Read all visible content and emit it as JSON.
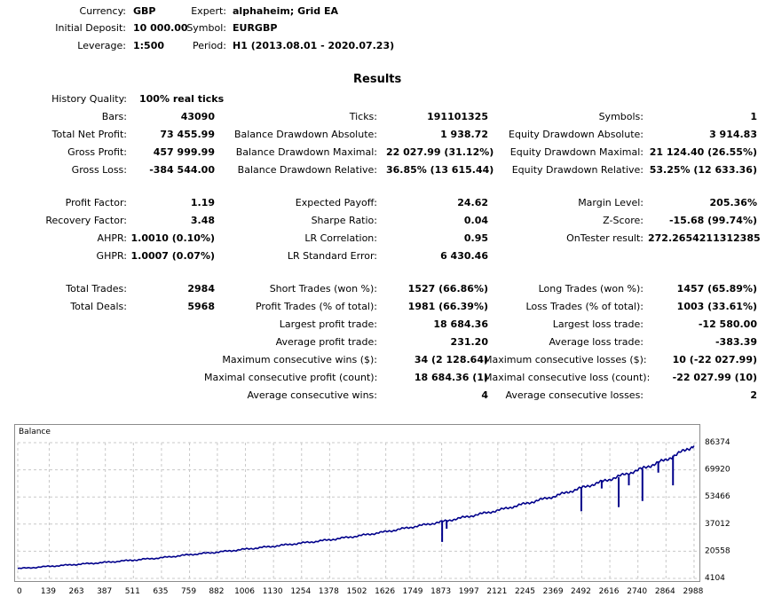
{
  "header": {
    "currency_label": "Currency:",
    "currency": "GBP",
    "deposit_label": "Initial Deposit:",
    "deposit": "10 000.00",
    "leverage_label": "Leverage:",
    "leverage": "1:500",
    "expert_label": "Expert:",
    "expert": "alphaheim; Grid EA",
    "symbol_label": "Symbol:",
    "symbol": "EURGBP",
    "period_label": "Period:",
    "period": "H1 (2013.08.01 - 2020.07.23)"
  },
  "results": {
    "title": "Results",
    "history_quality_label": "History Quality:",
    "history_quality": "100% real ticks",
    "col1": [
      {
        "label": "Bars:",
        "value": "43090"
      },
      {
        "label": "Total Net Profit:",
        "value": "73 455.99"
      },
      {
        "label": "Gross Profit:",
        "value": "457 999.99"
      },
      {
        "label": "Gross Loss:",
        "value": "-384 544.00"
      },
      {
        "label": "Profit Factor:",
        "value": "1.19"
      },
      {
        "label": "Recovery Factor:",
        "value": "3.48"
      },
      {
        "label": "AHPR:",
        "value": "1.0010 (0.10%)"
      },
      {
        "label": "GHPR:",
        "value": "1.0007 (0.07%)"
      },
      {
        "label": "Total Trades:",
        "value": "2984"
      },
      {
        "label": "Total Deals:",
        "value": "5968"
      }
    ],
    "col2": [
      {
        "label": "Ticks:",
        "value": "191101325"
      },
      {
        "label": "Balance Drawdown Absolute:",
        "value": "1 938.72"
      },
      {
        "label": "Balance Drawdown Maximal:",
        "value": "22 027.99 (31.12%)"
      },
      {
        "label": "Balance Drawdown Relative:",
        "value": "36.85% (13 615.44)"
      },
      {
        "label": "Expected Payoff:",
        "value": "24.62"
      },
      {
        "label": "Sharpe Ratio:",
        "value": "0.04"
      },
      {
        "label": "LR Correlation:",
        "value": "0.95"
      },
      {
        "label": "LR Standard Error:",
        "value": "6 430.46"
      },
      {
        "label": "Short Trades (won %):",
        "value": "1527 (66.86%)"
      },
      {
        "label": "Profit Trades (% of total):",
        "value": "1981 (66.39%)"
      },
      {
        "label": "Largest profit trade:",
        "value": "18 684.36"
      },
      {
        "label": "Average profit trade:",
        "value": "231.20"
      },
      {
        "label": "Maximum consecutive wins ($):",
        "value": "34 (2 128.64)"
      },
      {
        "label": "Maximal consecutive profit (count):",
        "value": "18 684.36 (1)"
      },
      {
        "label": "Average consecutive wins:",
        "value": "4"
      }
    ],
    "col3": [
      {
        "label": "Symbols:",
        "value": "1"
      },
      {
        "label": "Equity Drawdown Absolute:",
        "value": "3 914.83"
      },
      {
        "label": "Equity Drawdown Maximal:",
        "value": "21 124.40 (26.55%)"
      },
      {
        "label": "Equity Drawdown Relative:",
        "value": "53.25% (12 633.36)"
      },
      {
        "label": "Margin Level:",
        "value": "205.36%"
      },
      {
        "label": "Z-Score:",
        "value": "-15.68 (99.74%)"
      },
      {
        "label": "OnTester result:",
        "value": "272.2654211312385"
      },
      {
        "label": "Long Trades (won %):",
        "value": "1457 (65.89%)"
      },
      {
        "label": "Loss Trades (% of total):",
        "value": "1003 (33.61%)"
      },
      {
        "label": "Largest loss trade:",
        "value": "-12 580.00"
      },
      {
        "label": "Average loss trade:",
        "value": "-383.39"
      },
      {
        "label": "Maximum consecutive losses ($):",
        "value": "10 (-22 027.99)"
      },
      {
        "label": "Maximal consecutive loss (count):",
        "value": "-22 027.99 (10)"
      },
      {
        "label": "Average consecutive losses:",
        "value": "2"
      }
    ]
  },
  "colors": {
    "line": "#00008b",
    "grid": "#c8c8c8",
    "border": "#8c8c8c"
  },
  "chart_data": {
    "type": "line",
    "title": "Balance",
    "x_ticks": [
      "0",
      "139",
      "263",
      "387",
      "511",
      "635",
      "759",
      "882",
      "1006",
      "1130",
      "1254",
      "1378",
      "1502",
      "1626",
      "1749",
      "1873",
      "1997",
      "2121",
      "2245",
      "2369",
      "2492",
      "2616",
      "2740",
      "2864",
      "2988"
    ],
    "y_ticks": [
      "86374",
      "69920",
      "53466",
      "37012",
      "20558",
      "4104"
    ],
    "xlim": [
      0,
      3000
    ],
    "ylim": [
      4104,
      86374
    ],
    "grid": true,
    "series": [
      {
        "x": [
          0,
          139,
          263,
          387,
          511,
          635,
          759,
          882,
          1006,
          1130,
          1254,
          1378,
          1502,
          1626,
          1749,
          1873,
          1997,
          2121,
          2245,
          2369,
          2492,
          2616,
          2740,
          2864,
          2988
        ],
        "values": [
          10000,
          11400,
          12600,
          13800,
          15200,
          16600,
          18500,
          20000,
          21800,
          23600,
          25500,
          27500,
          29800,
          32400,
          35400,
          38400,
          41800,
          45300,
          49500,
          53800,
          59000,
          64200,
          69700,
          76000,
          84500
        ]
      }
    ],
    "drawdown_spikes": [
      {
        "x": 1875,
        "from": 39200,
        "to": 26200
      },
      {
        "x": 1895,
        "from": 39400,
        "to": 34200
      },
      {
        "x": 2490,
        "from": 59500,
        "to": 44800
      },
      {
        "x": 2655,
        "from": 65500,
        "to": 47300
      },
      {
        "x": 2760,
        "from": 70500,
        "to": 51000
      },
      {
        "x": 2895,
        "from": 78500,
        "to": 60500
      },
      {
        "x": 2830,
        "from": 75000,
        "to": 68200
      },
      {
        "x": 2700,
        "from": 67200,
        "to": 60500
      },
      {
        "x": 2580,
        "from": 63000,
        "to": 58600
      }
    ]
  }
}
